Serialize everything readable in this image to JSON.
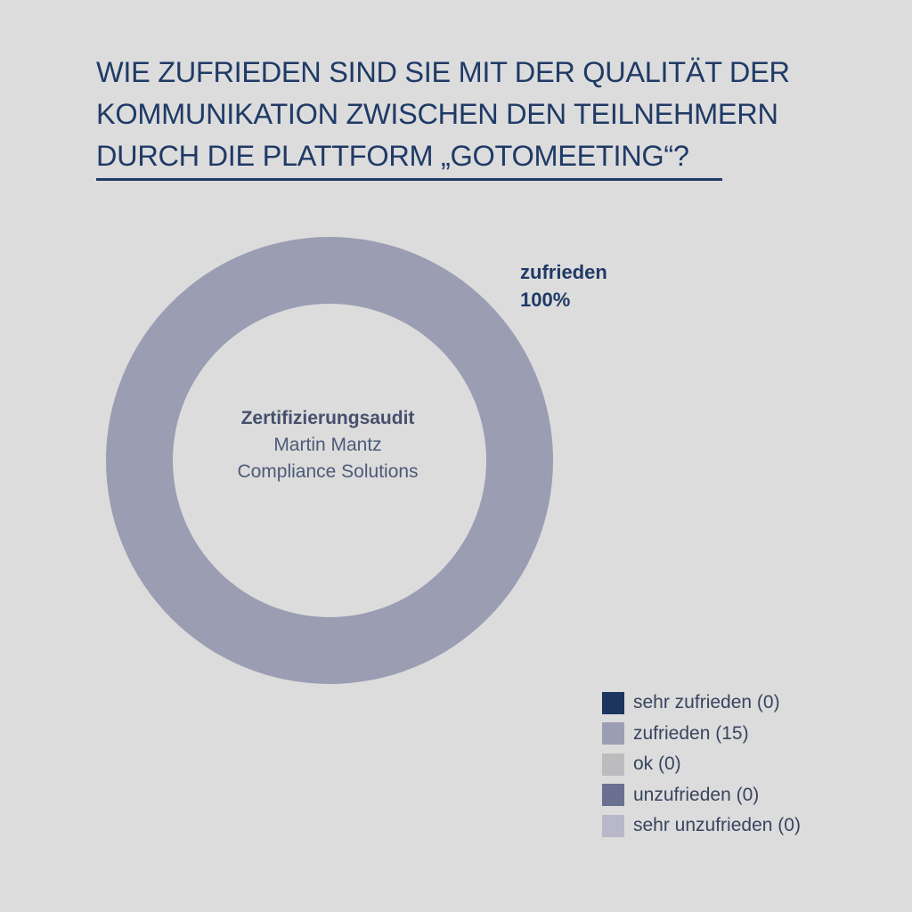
{
  "title_lines": [
    "WIE ZUFRIEDEN SIND SIE MIT DER QUALITÄT DER",
    "KOMMUNIKATION ZWISCHEN DEN TEILNEHMERN",
    "DURCH DIE PLATTFORM „GOTOMEETING“?"
  ],
  "center": {
    "line1": "Zertifizierungsaudit",
    "line2": "Martin Mantz",
    "line3": "Compliance Solutions"
  },
  "slice_label": {
    "name": "zufrieden",
    "percent": "100%"
  },
  "legend": [
    {
      "label": "sehr zufrieden (0)",
      "color": "#1c355e"
    },
    {
      "label": "zufrieden (15)",
      "color": "#9b9db3"
    },
    {
      "label": "ok (0)",
      "color": "#bcbcbe"
    },
    {
      "label": "unzufrieden (0)",
      "color": "#6a7090"
    },
    {
      "label": "sehr unzufrieden (0)",
      "color": "#b8b8c8"
    }
  ],
  "chart_data": {
    "type": "pie",
    "style": "donut",
    "categories": [
      "sehr zufrieden",
      "zufrieden",
      "ok",
      "unzufrieden",
      "sehr unzufrieden"
    ],
    "values": [
      0,
      15,
      0,
      0,
      0
    ],
    "colors": [
      "#1c355e",
      "#9b9db3",
      "#bcbcbe",
      "#6a7090",
      "#b8b8c8"
    ],
    "legend_position": "bottom-right"
  }
}
